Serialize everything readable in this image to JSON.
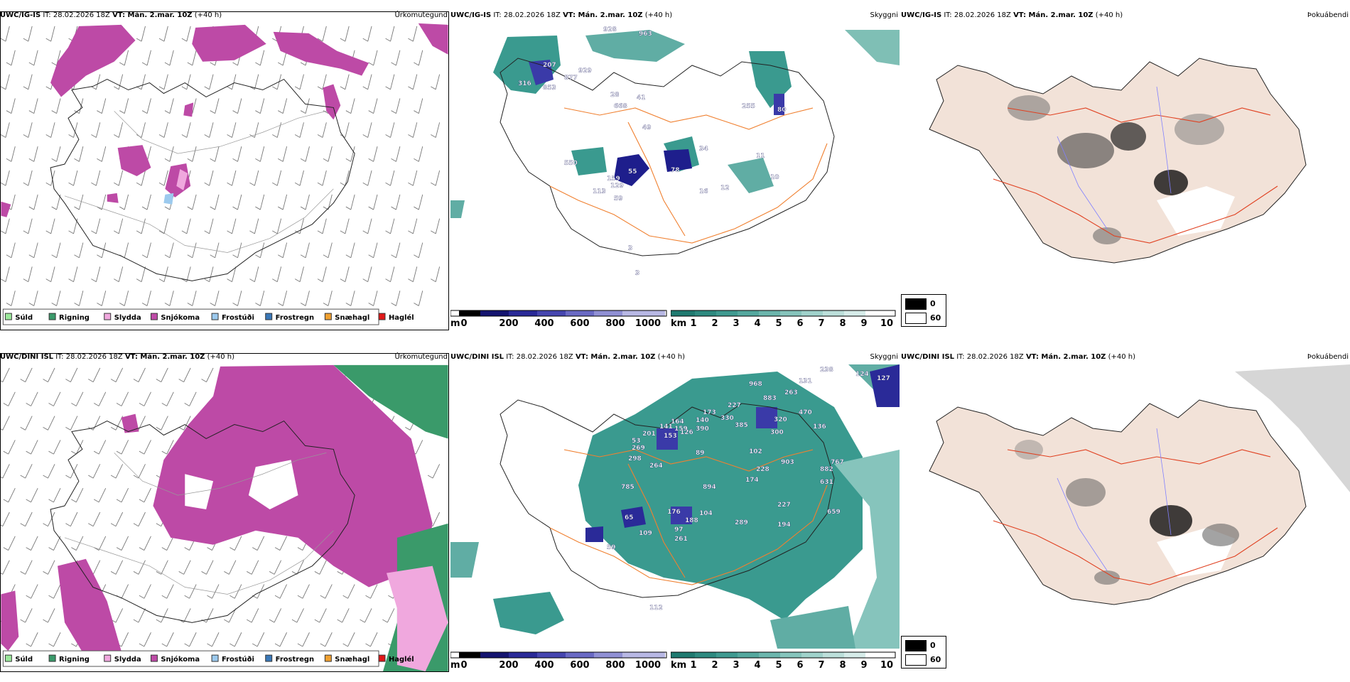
{
  "precip_legend": [
    {
      "label": "Súld",
      "color": "#9be89b"
    },
    {
      "label": "Rigning",
      "color": "#3a9a6a"
    },
    {
      "label": "Slydda",
      "color": "#f0a8de"
    },
    {
      "label": "Snjókoma",
      "color": "#bd4aa6"
    },
    {
      "label": "Frostúði",
      "color": "#9ccaee"
    },
    {
      "label": "Frostregn",
      "color": "#3a78b8"
    },
    {
      "label": "Snæhagl",
      "color": "#f0a030"
    },
    {
      "label": "Haglél",
      "color": "#e01818"
    }
  ],
  "cloud_base_bar": {
    "unit": "m",
    "ticks": [
      "0",
      "200",
      "400",
      "600",
      "800",
      "1000"
    ]
  },
  "visibility_bar": {
    "unit": "km",
    "ticks": [
      "1",
      "2",
      "3",
      "4",
      "5",
      "6",
      "7",
      "8",
      "9",
      "10"
    ]
  },
  "fog_legend": [
    "0",
    "60"
  ],
  "rows": [
    {
      "model": "UWC/IG-IS",
      "it_label": "IT: 28.02.2026 18Z",
      "vt_label": "VT: Mán. 2.mar. 10Z",
      "lead": "(+40 h)",
      "products": [
        "Úrkomutegund",
        "Skyggni",
        "Þokuábendi"
      ],
      "cloud_labels": [
        "928",
        "963",
        "207",
        "877",
        "929",
        "316",
        "853",
        "28",
        "668",
        "41",
        "49",
        "255",
        "80",
        "34",
        "550",
        "78",
        "55",
        "159",
        "59",
        "129",
        "113",
        "16",
        "12",
        "11",
        "10",
        "3",
        "3"
      ]
    },
    {
      "model": "UWC/DINI ISL",
      "it_label": "IT: 28.02.2026 18Z",
      "vt_label": "VT: Mán. 2.mar. 10Z",
      "lead": "(+40 h)",
      "products": [
        "Úrkomutegund",
        "Skyggni",
        "Þokuábendi"
      ],
      "cloud_labels": [
        "238",
        "124",
        "127",
        "968",
        "131",
        "263",
        "227",
        "883",
        "173",
        "330",
        "385",
        "320",
        "470",
        "201",
        "164",
        "140",
        "390",
        "126",
        "153",
        "141",
        "159",
        "136",
        "269",
        "298",
        "264",
        "300",
        "102",
        "903",
        "767",
        "882",
        "631",
        "228",
        "174",
        "89",
        "894",
        "104",
        "176",
        "65",
        "97",
        "188",
        "227",
        "659",
        "194",
        "289",
        "261",
        "109",
        "59",
        "112",
        "53",
        "785"
      ]
    }
  ]
}
